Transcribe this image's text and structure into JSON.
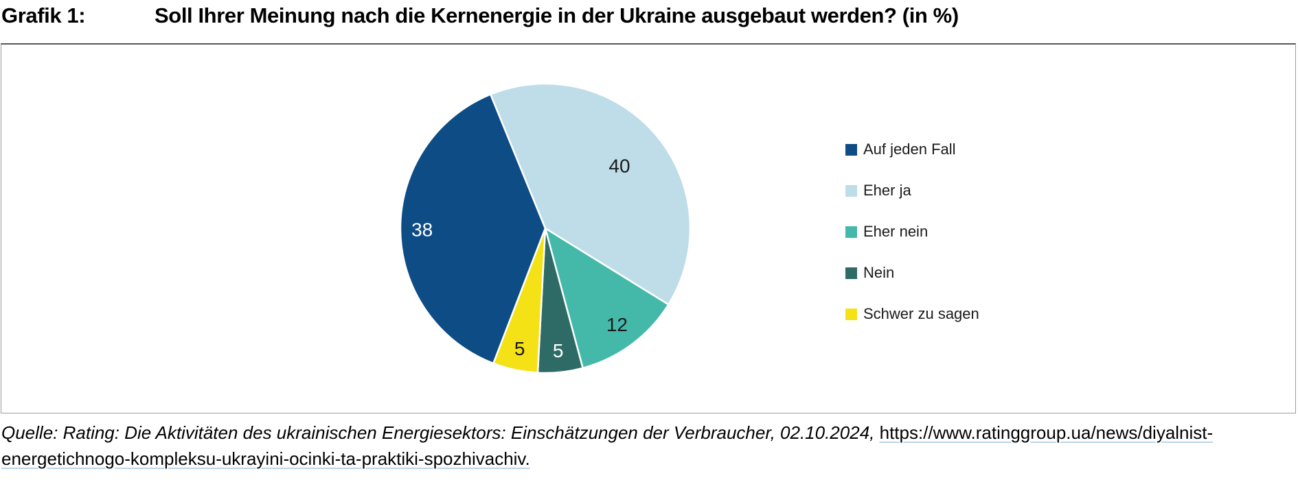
{
  "header": {
    "label": "Grafik 1:",
    "title": "Soll Ihrer Meinung nach die Kernenergie in der Ukraine ausgebaut werden? (in %)"
  },
  "chart_data": {
    "type": "pie",
    "title": "Soll Ihrer Meinung nach die Kernenergie in der Ukraine ausgebaut werden?",
    "unit": "%",
    "total": 100,
    "start_angle_deg": 201,
    "direction": "clockwise",
    "legend_position": "right",
    "segments": [
      {
        "label": "Auf jeden Fall",
        "value": 38,
        "color": "#0E4C85",
        "label_color": "#FFFFFF",
        "label_r": 0.85
      },
      {
        "label": "Eher ja",
        "value": 40,
        "color": "#BEDDE9",
        "label_color": "#1A1A1A",
        "label_r": 0.67
      },
      {
        "label": "Eher nein",
        "value": 12,
        "color": "#45B9A9",
        "label_color": "#1A1A1A",
        "label_r": 0.83
      },
      {
        "label": "Nein",
        "value": 5,
        "color": "#2F6B66",
        "label_color": "#FFFFFF",
        "label_r": 0.85
      },
      {
        "label": "Schwer zu sagen",
        "value": 5,
        "color": "#F4E216",
        "label_color": "#1A1A1A",
        "label_r": 0.85
      }
    ]
  },
  "source": {
    "italic_text": "Quelle: Rating: Die Aktivitäten des ukrainischen Energiesektors: Einschätzungen der Verbraucher, 02.10.2024, ",
    "link_line1": "https://www.ratinggroup.ua/news/diyalnist-",
    "link_line2": "energetichnogo-kompleksu-ukrayini-ocinki-ta-praktiki-spozhivachiv."
  },
  "colors": {
    "link_underline": "#B9D5EA",
    "box_border": "#9B9B9B",
    "box_border_top": "#575757",
    "slice_separator": "#FFFFFF"
  }
}
